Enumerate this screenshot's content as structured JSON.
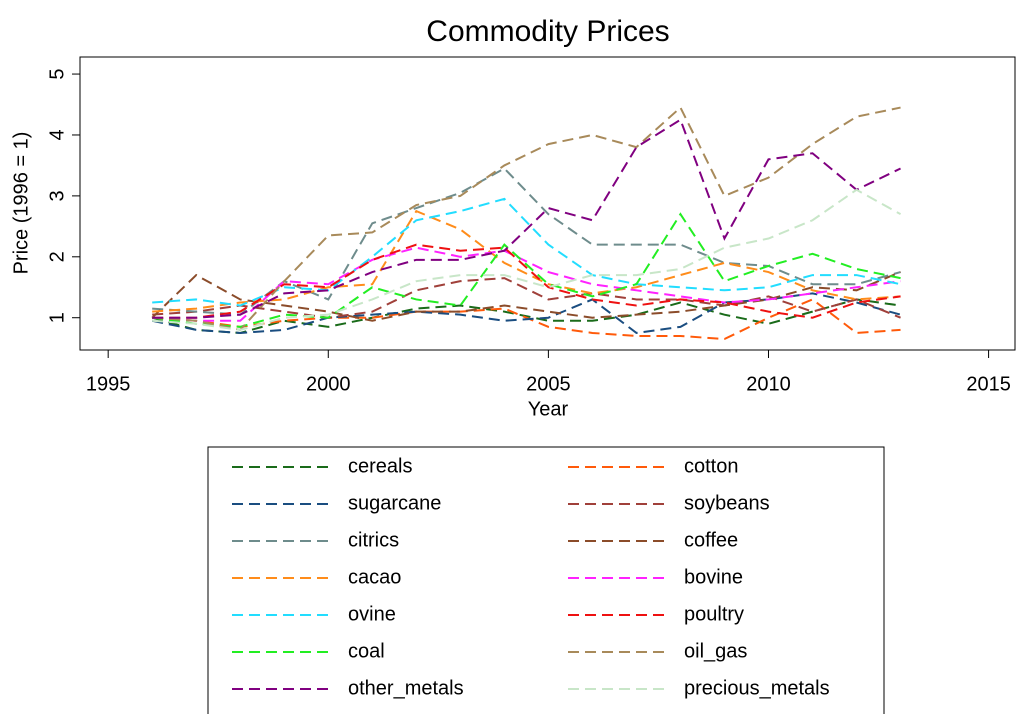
{
  "chart_data": {
    "type": "line",
    "title": "Commodity Prices",
    "x_label": "Year",
    "y_label": "Price (1996 = 1)",
    "x": [
      1996,
      1997,
      1998,
      1999,
      2000,
      2001,
      2002,
      2003,
      2004,
      2005,
      2006,
      2007,
      2008,
      2009,
      2010,
      2011,
      2012,
      2013
    ],
    "xlim": [
      1994.36,
      2015.6
    ],
    "xticks": [
      1995,
      2000,
      2005,
      2010,
      2015
    ],
    "ylim": [
      0.47,
      5.28
    ],
    "yticks": [
      1,
      2,
      3,
      4,
      5
    ],
    "series": [
      {
        "name": "cereals",
        "color": "#1a6b1a",
        "values": [
          1.0,
          0.8,
          0.75,
          0.95,
          0.85,
          1.0,
          1.15,
          1.2,
          1.1,
          0.95,
          0.95,
          1.05,
          1.25,
          1.05,
          0.9,
          1.1,
          1.3,
          1.2
        ]
      },
      {
        "name": "cotton",
        "color": "#ff5a0a",
        "values": [
          1.0,
          0.95,
          0.85,
          0.95,
          1.0,
          1.0,
          1.1,
          1.1,
          1.15,
          0.85,
          0.75,
          0.7,
          0.7,
          0.65,
          1.0,
          1.3,
          0.75,
          0.8
        ]
      },
      {
        "name": "sugarcane",
        "color": "#1a4d80",
        "values": [
          0.95,
          0.8,
          0.75,
          0.8,
          1.0,
          1.05,
          1.1,
          1.05,
          0.95,
          1.0,
          1.3,
          0.75,
          0.85,
          1.25,
          1.3,
          1.4,
          1.25,
          1.05
        ]
      },
      {
        "name": "soybeans",
        "color": "#a0403a",
        "values": [
          1.05,
          1.1,
          1.2,
          1.1,
          1.0,
          1.1,
          1.45,
          1.6,
          1.65,
          1.3,
          1.4,
          1.3,
          1.3,
          1.2,
          1.35,
          1.1,
          1.3,
          1.0
        ]
      },
      {
        "name": "citrics",
        "color": "#6e8c8c",
        "values": [
          1.15,
          1.1,
          1.05,
          1.6,
          1.3,
          2.55,
          2.8,
          3.05,
          3.45,
          2.7,
          2.2,
          2.2,
          2.2,
          1.9,
          1.85,
          1.55,
          1.55,
          1.75
        ]
      },
      {
        "name": "coffee",
        "color": "#8b4c2a",
        "values": [
          1.0,
          1.7,
          1.3,
          1.2,
          1.1,
          0.95,
          1.1,
          1.1,
          1.2,
          1.1,
          1.0,
          1.05,
          1.1,
          1.2,
          1.3,
          1.5,
          1.45,
          1.75
        ]
      },
      {
        "name": "cacao",
        "color": "#ff8c1a",
        "values": [
          1.1,
          1.15,
          1.25,
          1.3,
          1.5,
          1.55,
          2.75,
          2.45,
          1.9,
          1.55,
          1.4,
          1.5,
          1.7,
          1.9,
          1.75,
          1.45,
          1.3,
          1.35
        ]
      },
      {
        "name": "bovine",
        "color": "#ff22ff",
        "values": [
          1.0,
          0.95,
          0.95,
          1.6,
          1.55,
          1.95,
          2.15,
          2.0,
          2.1,
          1.75,
          1.55,
          1.45,
          1.35,
          1.25,
          1.3,
          1.4,
          1.5,
          1.6
        ]
      },
      {
        "name": "ovine",
        "color": "#22ddff",
        "values": [
          1.25,
          1.3,
          1.2,
          1.5,
          1.45,
          2.0,
          2.6,
          2.75,
          2.95,
          2.2,
          1.7,
          1.55,
          1.5,
          1.45,
          1.5,
          1.7,
          1.7,
          1.55
        ]
      },
      {
        "name": "poultry",
        "color": "#ee1111",
        "values": [
          1.0,
          1.0,
          1.1,
          1.55,
          1.5,
          1.95,
          2.2,
          2.1,
          2.15,
          1.5,
          1.3,
          1.2,
          1.3,
          1.25,
          1.1,
          1.0,
          1.25,
          1.35
        ]
      },
      {
        "name": "coal",
        "color": "#22ee22",
        "values": [
          1.0,
          0.9,
          0.85,
          1.05,
          1.0,
          1.5,
          1.3,
          1.2,
          2.2,
          1.55,
          1.35,
          1.55,
          2.7,
          1.6,
          1.85,
          2.05,
          1.8,
          1.65
        ]
      },
      {
        "name": "oil_gas",
        "color": "#a88a5a",
        "values": [
          1.0,
          0.95,
          0.8,
          1.6,
          2.35,
          2.4,
          2.85,
          3.0,
          3.5,
          3.85,
          4.0,
          3.8,
          4.45,
          3.0,
          3.3,
          3.85,
          4.3,
          4.45
        ]
      },
      {
        "name": "other_metals",
        "color": "#800080",
        "values": [
          1.0,
          1.0,
          1.05,
          1.4,
          1.45,
          1.75,
          1.95,
          1.95,
          2.1,
          2.8,
          2.6,
          3.8,
          4.25,
          2.3,
          3.6,
          3.7,
          3.1,
          3.45
        ]
      },
      {
        "name": "precious_metals",
        "color": "#c8e6c8",
        "values": [
          0.95,
          0.9,
          0.8,
          1.0,
          1.05,
          1.3,
          1.6,
          1.7,
          1.7,
          1.5,
          1.7,
          1.7,
          1.8,
          2.15,
          2.3,
          2.6,
          3.1,
          2.7
        ]
      }
    ]
  }
}
